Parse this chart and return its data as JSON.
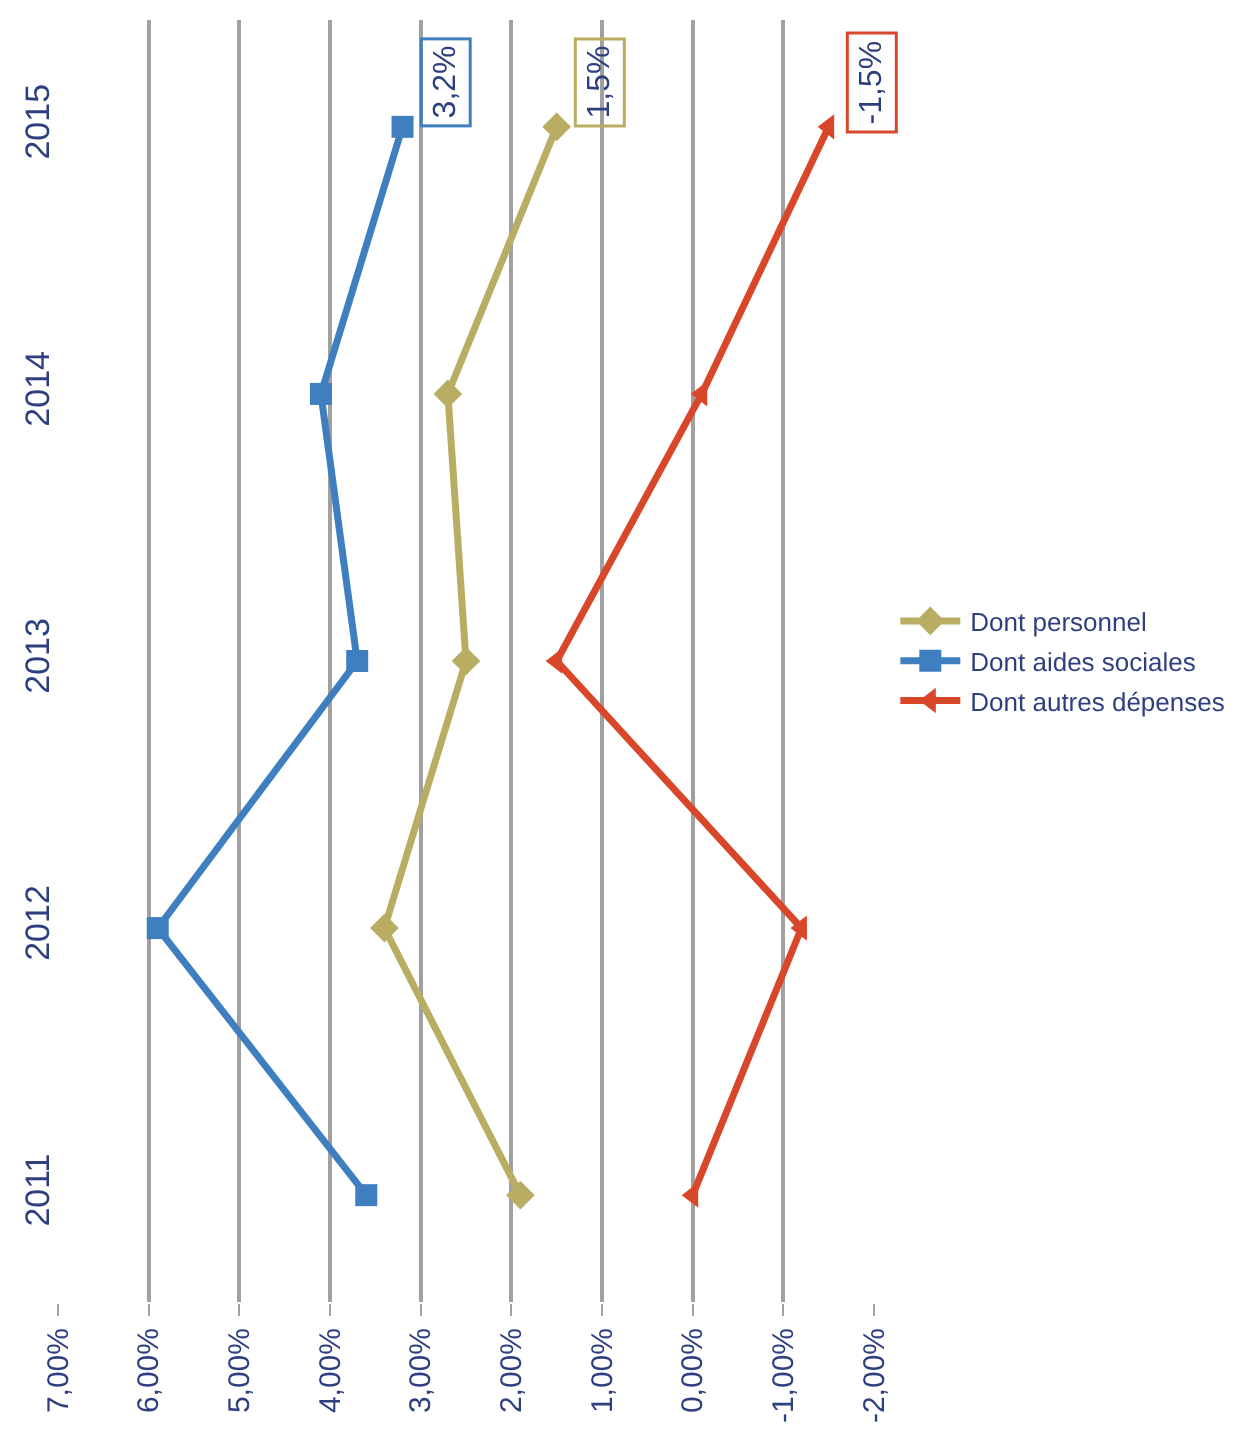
{
  "chart_data": {
    "type": "line",
    "orientation": "horizontal",
    "categories": [
      "2015",
      "2014",
      "2013",
      "2012",
      "2011"
    ],
    "series": [
      {
        "name": "Dont personnel",
        "color": "#b8ad62",
        "marker": "diamond",
        "values": [
          1.5,
          2.7,
          2.5,
          3.4,
          1.9
        ]
      },
      {
        "name": "Dont aides sociales",
        "color": "#3f7fc0",
        "marker": "square",
        "values": [
          3.2,
          4.1,
          3.7,
          5.9,
          3.6
        ]
      },
      {
        "name": "Dont autres dépenses",
        "color": "#d9472b",
        "marker": "triangle",
        "values": [
          -1.5,
          -0.1,
          1.5,
          -1.2,
          0.0
        ]
      }
    ],
    "xlim": [
      7,
      -2
    ],
    "xticks": [
      {
        "value": 7,
        "label": "7,00%"
      },
      {
        "value": 6,
        "label": "6,00%"
      },
      {
        "value": 5,
        "label": "5,00%"
      },
      {
        "value": 4,
        "label": "4,00%"
      },
      {
        "value": 3,
        "label": "3,00%"
      },
      {
        "value": 2,
        "label": "2,00%"
      },
      {
        "value": 1,
        "label": "1,00%"
      },
      {
        "value": 0,
        "label": "0,00%"
      },
      {
        "value": -1,
        "label": "-1,00%"
      },
      {
        "value": -2,
        "label": "-2,00%"
      }
    ],
    "annotations": [
      {
        "text": "3,2%",
        "x": 3.2,
        "y": "2015"
      },
      {
        "text": "1,5%",
        "x": 1.5,
        "y": "2015"
      },
      {
        "text": "-1,5%",
        "x": -1.5,
        "y": "2015"
      }
    ],
    "grid": "x",
    "legend": "right"
  }
}
